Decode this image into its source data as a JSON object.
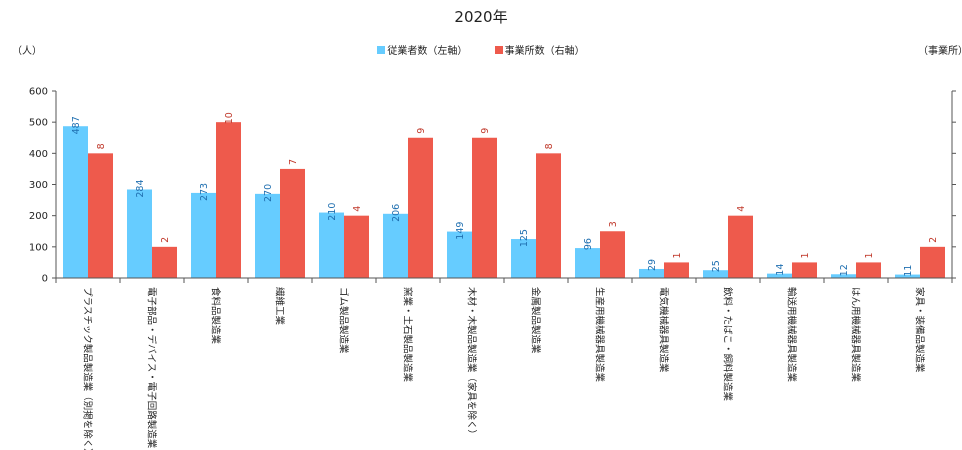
{
  "chart_data": {
    "type": "bar",
    "title": "2020年",
    "ylabel": "（人）",
    "y2label": "（事業所）",
    "ylim": [
      0,
      600
    ],
    "yticks": [
      0,
      100,
      200,
      300,
      400,
      500,
      600
    ],
    "y2lim": [
      0,
      12
    ],
    "legend_position": "top-center",
    "grid": false,
    "categories": [
      "プラスチック製品製造業（別掲を除く）",
      "電子部品・デバイス・電子回路製造業",
      "食料品製造業",
      "繊維工業",
      "ゴム製品製造業",
      "窯業・土石製品製造業",
      "木材・木製品製造業（家具を除く）",
      "金属製品製造業",
      "生産用機械器具製造業",
      "電気機械器具製造業",
      "飲料・たばこ・飼料製造業",
      "輸送用機械器具製造業",
      "はん用機械器具製造業",
      "家具・装備品製造業"
    ],
    "series": [
      {
        "name": "従業者数（左軸）",
        "axis": "left",
        "color": "#66CCFF",
        "label_color": "#1F6FB0",
        "values": [
          487,
          284,
          273,
          270,
          210,
          206,
          149,
          125,
          96,
          29,
          25,
          14,
          12,
          11
        ]
      },
      {
        "name": "事業所数（右軸）",
        "axis": "right",
        "color": "#EE5A4C",
        "label_color": "#C0392B",
        "values": [
          8,
          2,
          10,
          7,
          4,
          9,
          9,
          8,
          3,
          1,
          4,
          1,
          1,
          2
        ]
      }
    ]
  }
}
